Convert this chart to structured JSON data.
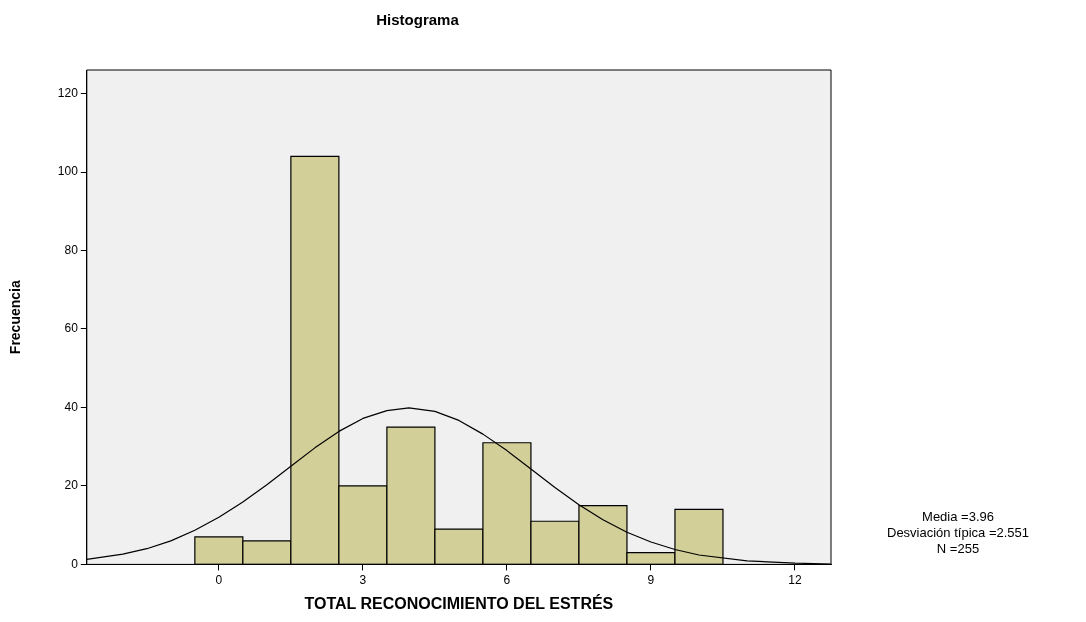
{
  "chart_data": {
    "type": "histogram",
    "title": "Histograma",
    "xlabel": "TOTAL RECONOCIMIENTO DEL ESTRÉS",
    "ylabel": "Frecuencia",
    "bins": [
      -0.5,
      0.5,
      1.5,
      2.5,
      3.5,
      4.5,
      5.5,
      6.5,
      7.5,
      8.5,
      9.5,
      10.5
    ],
    "values": [
      7,
      6,
      104,
      20,
      35,
      9,
      31,
      11,
      15,
      3,
      14
    ],
    "color": "#d3cf98",
    "series": [
      {
        "type": "line",
        "color": "#000000",
        "x": [
          -2.75,
          -2,
          -1.5,
          -1,
          -0.5,
          0,
          0.5,
          1,
          1.5,
          2,
          2.5,
          3,
          3.5,
          3.96,
          4.5,
          5,
          5.5,
          6,
          6.5,
          7,
          7.5,
          8,
          8.5,
          9,
          9.5,
          10,
          11,
          12,
          12.75
        ],
        "values": [
          1.3,
          2.6,
          4,
          6,
          8.7,
          12,
          15.9,
          20.3,
          25,
          29.7,
          33.9,
          37.2,
          39.2,
          39.9,
          39,
          36.7,
          33.2,
          29,
          24.3,
          19.6,
          15.2,
          11.4,
          8.2,
          5.7,
          3.8,
          2.4,
          0.9,
          0.3,
          0.1
        ]
      }
    ],
    "xlim": [
      -2.75,
      12.75
    ],
    "xticks": [
      0,
      3,
      6,
      9,
      12
    ],
    "ylim": [
      0,
      126
    ],
    "yticks": [
      0,
      20,
      40,
      60,
      80,
      100,
      120
    ],
    "grid": false,
    "legend": false,
    "marker": "none",
    "line_style": "solid",
    "annotations": [
      "Media =3.96",
      "Desviación típica =2.551",
      "N =255"
    ]
  }
}
